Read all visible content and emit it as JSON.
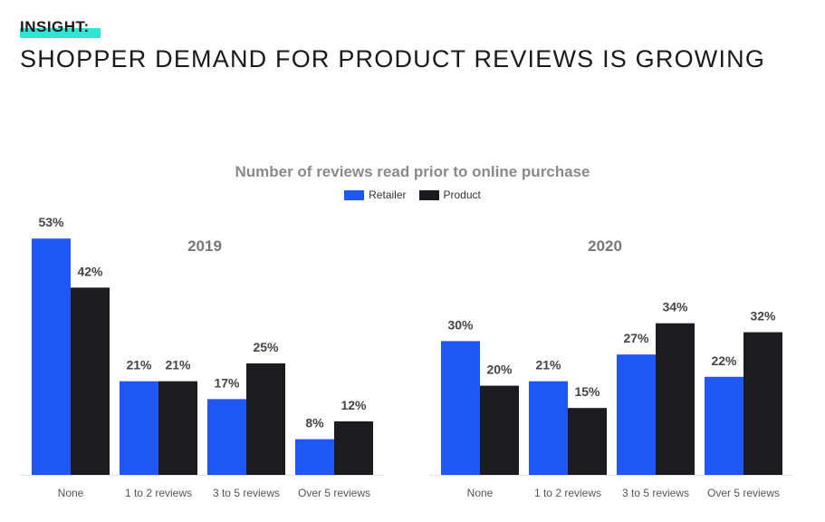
{
  "header": {
    "insight": "INSIGHT:",
    "headline": "SHOPPER DEMAND FOR PRODUCT REVIEWS IS GROWING"
  },
  "colors": {
    "accent": "#2ee6d6",
    "retailer": "#1f57f5",
    "product": "#1c1b20"
  },
  "chart_data": {
    "type": "bar",
    "title": "Number of reviews read prior to online purchase",
    "legend": [
      "Retailer",
      "Product"
    ],
    "legend_position": "top-center",
    "ylim": [
      0,
      55
    ],
    "categories": [
      "None",
      "1 to 2 reviews",
      "3 to 5 reviews",
      "Over 5 reviews"
    ],
    "panels": [
      {
        "year": "2019",
        "series": [
          {
            "name": "Retailer",
            "values": [
              53,
              21,
              17,
              8
            ]
          },
          {
            "name": "Product",
            "values": [
              42,
              21,
              25,
              12
            ]
          }
        ]
      },
      {
        "year": "2020",
        "series": [
          {
            "name": "Retailer",
            "values": [
              30,
              21,
              27,
              22
            ]
          },
          {
            "name": "Product",
            "values": [
              20,
              15,
              34,
              32
            ]
          }
        ]
      }
    ]
  }
}
